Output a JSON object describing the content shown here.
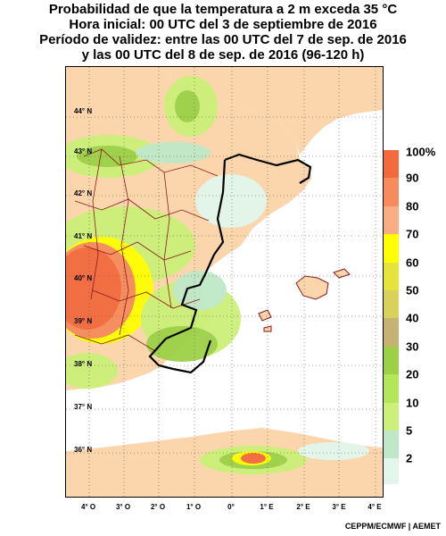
{
  "title_lines": [
    "Probabilidad de que la temperatura a 2 m exceda 35 °C",
    "Hora inicial: 00 UTC del 3 de septiembre de 2016",
    "Período de validez: entre las 00 UTC del 7 de sep. de 2016",
    "y las 00 UTC del 8 de sep. de 2016 (96-120 h)"
  ],
  "lat_labels": [
    "44° N",
    "43° N",
    "42° N",
    "41° N",
    "40° N",
    "39° N",
    "38° N",
    "37° N",
    "36° N"
  ],
  "lon_labels": [
    "4° O",
    "3° O",
    "2° O",
    "1° O",
    "0°",
    "1° E",
    "2° E",
    "3° E",
    "4° E"
  ],
  "legend": {
    "labels": [
      "100%",
      "90",
      "80",
      "70",
      "60",
      "50",
      "40",
      "30",
      "20",
      "10",
      "5",
      "2"
    ],
    "colors": [
      "#f26a3e",
      "#f68c5c",
      "#f8ad82",
      "#ffff00",
      "#e4e43a",
      "#d8d25c",
      "#c6b374",
      "#9cd147",
      "#b4e65a",
      "#ccf07a",
      "#bfe8c8",
      "#e2f6ec"
    ]
  },
  "colors": {
    "land": "#fbd6ac",
    "sea": "#ffffff",
    "low_prob": "#ccf07a",
    "mid_prob": "#9cd147",
    "high_prob": "#f26a3e",
    "region_border": "#000000",
    "province_border": "#8b1a1a"
  },
  "credit": "CEPPM/ECMWF | AEMET"
}
